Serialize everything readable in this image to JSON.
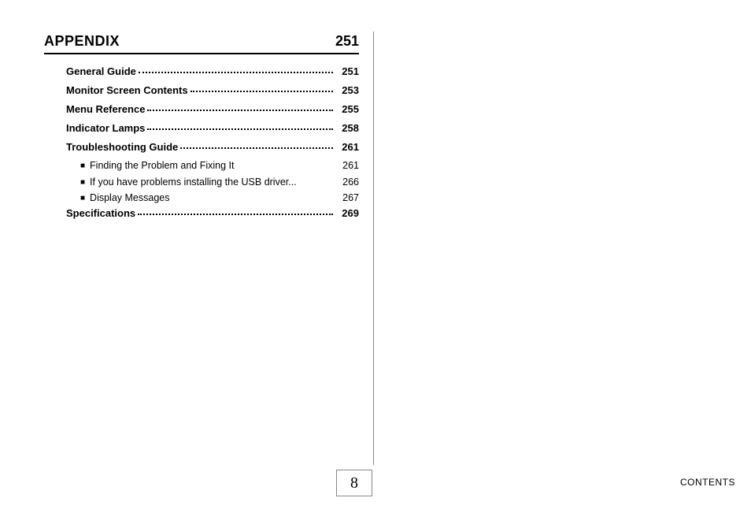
{
  "section": {
    "title": "APPENDIX",
    "page": "251"
  },
  "toc": [
    {
      "type": "main",
      "label": "General Guide",
      "page": "251",
      "dotted": true
    },
    {
      "type": "main",
      "label": "Monitor Screen Contents",
      "page": "253",
      "dotted": true
    },
    {
      "type": "main",
      "label": "Menu Reference",
      "page": "255",
      "dotted": true
    },
    {
      "type": "main",
      "label": "Indicator Lamps",
      "page": "258",
      "dotted": true
    },
    {
      "type": "main",
      "label": "Troubleshooting Guide",
      "page": "261",
      "dotted": true
    },
    {
      "type": "sub",
      "label": "Finding the Problem and Fixing It",
      "page": "261",
      "dotted": false
    },
    {
      "type": "sub",
      "label": "If you have problems installing the USB driver...",
      "page": "266",
      "dotted": false
    },
    {
      "type": "sub",
      "label": "Display Messages",
      "page": "267",
      "dotted": false
    },
    {
      "type": "main",
      "label": "Specifications",
      "page": "269",
      "dotted": true
    }
  ],
  "page_number": "8",
  "footer_label": "CONTENTS",
  "colors": {
    "text": "#000000",
    "background": "#ffffff",
    "divider": "#888888"
  },
  "typography": {
    "body_font": "Arial, Helvetica, sans-serif",
    "page_number_font": "Times New Roman, serif",
    "section_title_size_pt": 14,
    "main_entry_size_pt": 10,
    "sub_entry_size_pt": 9.5,
    "footer_size_pt": 9
  }
}
